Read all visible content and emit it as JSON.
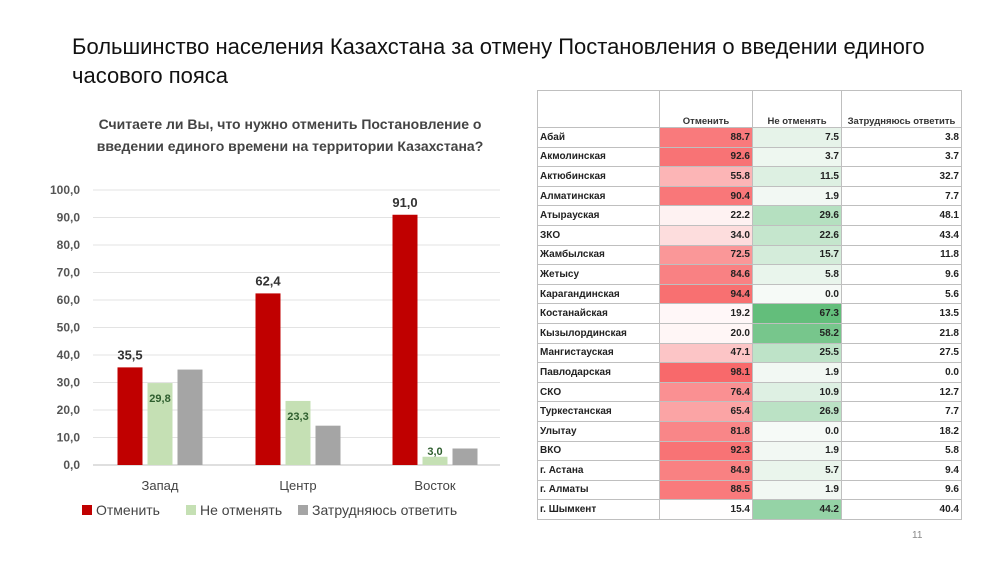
{
  "title": "Большинство населения Казахстана за отмену Постановления о введении единого часового пояса",
  "page_number": "11",
  "chart_data": {
    "type": "bar",
    "title": "Считаете ли Вы, что нужно отменить Постановление о введении единого времени на территории Казахстана?",
    "categories": [
      "Запад",
      "Центр",
      "Восток"
    ],
    "series": [
      {
        "name": "Отменить",
        "color": "#c00000",
        "values": [
          35.5,
          62.4,
          91.0
        ],
        "labels": [
          "35,5",
          "62,4",
          "91,0"
        ]
      },
      {
        "name": "Не отменять",
        "color": "#c5e0b4",
        "values": [
          29.8,
          23.3,
          3.0
        ],
        "labels": [
          "29,8",
          "23,3",
          "3,0"
        ]
      },
      {
        "name": "Затрудняюсь ответить",
        "color": "#a5a5a5",
        "values": [
          34.7,
          14.3,
          6.0
        ],
        "labels": [
          null,
          null,
          null
        ]
      }
    ],
    "ylim": [
      0,
      100
    ],
    "yticks": [
      "0,0",
      "10,0",
      "20,0",
      "30,0",
      "40,0",
      "50,0",
      "60,0",
      "70,0",
      "80,0",
      "90,0",
      "100,0"
    ],
    "grid": true,
    "legend": "bottom"
  },
  "table": {
    "headers": [
      "",
      "Отменить",
      "Не отменять",
      "Затрудняюсь ответить"
    ],
    "rows": [
      [
        "Абай",
        "88.7",
        "7.5",
        "3.8"
      ],
      [
        "Акмолинская",
        "92.6",
        "3.7",
        "3.7"
      ],
      [
        "Актюбинская",
        "55.8",
        "11.5",
        "32.7"
      ],
      [
        "Алматинская",
        "90.4",
        "1.9",
        "7.7"
      ],
      [
        "Атырауская",
        "22.2",
        "29.6",
        "48.1"
      ],
      [
        "ЗКО",
        "34.0",
        "22.6",
        "43.4"
      ],
      [
        "Жамбылская",
        "72.5",
        "15.7",
        "11.8"
      ],
      [
        "Жетысу",
        "84.6",
        "5.8",
        "9.6"
      ],
      [
        "Карагандинская",
        "94.4",
        "0.0",
        "5.6"
      ],
      [
        "Костанайская",
        "19.2",
        "67.3",
        "13.5"
      ],
      [
        "Кызылординская",
        "20.0",
        "58.2",
        "21.8"
      ],
      [
        "Мангистауская",
        "47.1",
        "25.5",
        "27.5"
      ],
      [
        "Павлодарская",
        "98.1",
        "1.9",
        "0.0"
      ],
      [
        "СКО",
        "76.4",
        "10.9",
        "12.7"
      ],
      [
        "Туркестанская",
        "65.4",
        "26.9",
        "7.7"
      ],
      [
        "Улытау",
        "81.8",
        "0.0",
        "18.2"
      ],
      [
        "ВКО",
        "92.3",
        "1.9",
        "5.8"
      ],
      [
        "г. Астана",
        "84.9",
        "5.7",
        "9.4"
      ],
      [
        "г. Алматы",
        "88.5",
        "1.9",
        "9.6"
      ],
      [
        "г. Шымкент",
        "15.4",
        "44.2",
        "40.4"
      ]
    ]
  }
}
